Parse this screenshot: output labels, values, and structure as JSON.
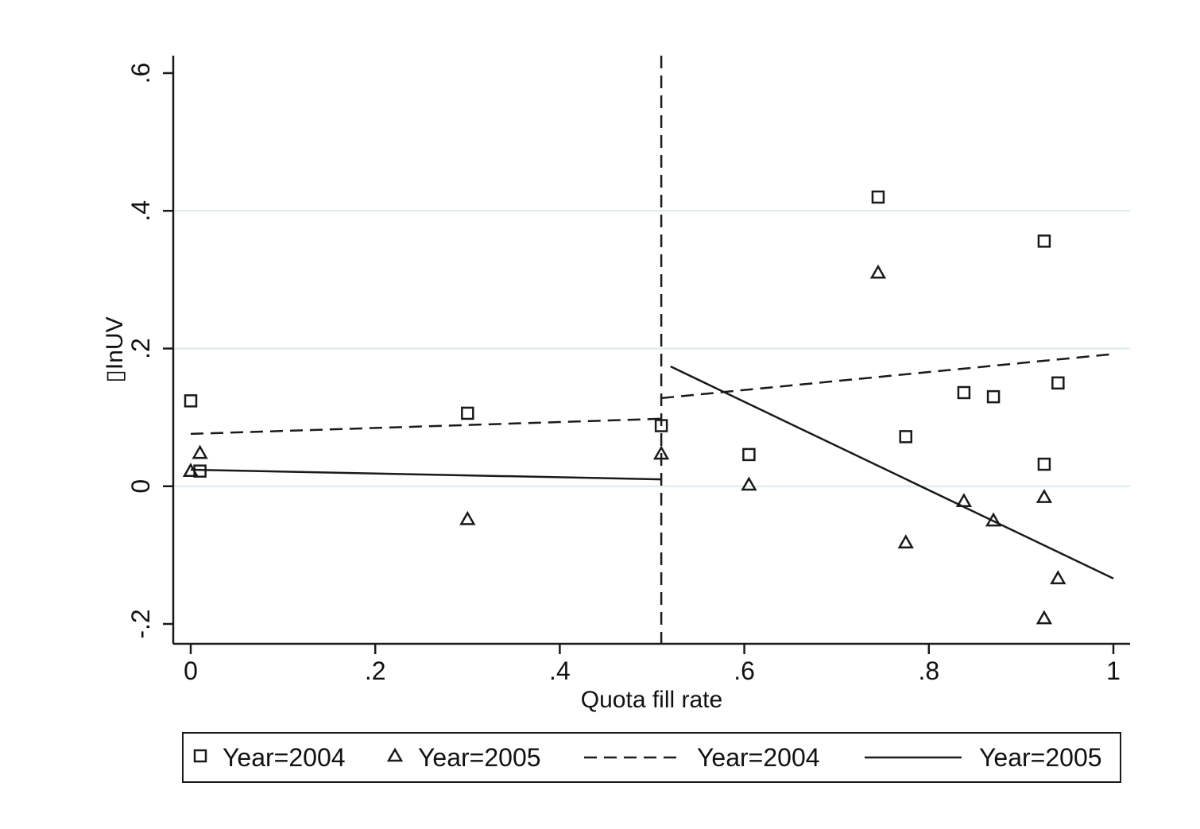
{
  "chart_data": {
    "type": "scatter",
    "xlabel": "Quota fill rate",
    "ylabel": "▯InUV",
    "xlim": [
      0,
      1
    ],
    "ylim": [
      -0.2,
      0.6
    ],
    "x_ticks": [
      0,
      0.2,
      0.4,
      0.6,
      0.8,
      1
    ],
    "x_tick_labels": [
      "0",
      ".2",
      ".4",
      ".6",
      ".8",
      "1"
    ],
    "y_ticks": [
      -0.2,
      0,
      0.2,
      0.4,
      0.6
    ],
    "y_tick_labels": [
      "-.2",
      "0",
      ".2",
      ".4",
      ".6"
    ],
    "grid": true,
    "threshold_x": 0.51,
    "series": [
      {
        "name": "Year=2004",
        "kind": "points",
        "marker": "square",
        "points": [
          {
            "x": 0.0,
            "y": 0.124
          },
          {
            "x": 0.01,
            "y": 0.022
          },
          {
            "x": 0.3,
            "y": 0.106
          },
          {
            "x": 0.51,
            "y": 0.088
          },
          {
            "x": 0.605,
            "y": 0.046
          },
          {
            "x": 0.745,
            "y": 0.42
          },
          {
            "x": 0.775,
            "y": 0.072
          },
          {
            "x": 0.838,
            "y": 0.136
          },
          {
            "x": 0.87,
            "y": 0.13
          },
          {
            "x": 0.925,
            "y": 0.356
          },
          {
            "x": 0.925,
            "y": 0.032
          },
          {
            "x": 0.94,
            "y": 0.15
          }
        ]
      },
      {
        "name": "Year=2005",
        "kind": "points",
        "marker": "triangle",
        "points": [
          {
            "x": 0.0,
            "y": 0.022
          },
          {
            "x": 0.01,
            "y": 0.048
          },
          {
            "x": 0.3,
            "y": -0.048
          },
          {
            "x": 0.51,
            "y": 0.047
          },
          {
            "x": 0.605,
            "y": 0.002
          },
          {
            "x": 0.745,
            "y": 0.31
          },
          {
            "x": 0.775,
            "y": -0.082
          },
          {
            "x": 0.838,
            "y": -0.022
          },
          {
            "x": 0.87,
            "y": -0.05
          },
          {
            "x": 0.925,
            "y": -0.016
          },
          {
            "x": 0.925,
            "y": -0.192
          },
          {
            "x": 0.94,
            "y": -0.134
          }
        ]
      },
      {
        "name": "Year=2004",
        "kind": "fit",
        "dash": "dashed",
        "segments": [
          [
            {
              "x": 0.0,
              "y": 0.076
            },
            {
              "x": 0.51,
              "y": 0.098
            }
          ],
          [
            {
              "x": 0.51,
              "y": 0.128
            },
            {
              "x": 1.0,
              "y": 0.192
            }
          ]
        ]
      },
      {
        "name": "Year=2005",
        "kind": "fit",
        "dash": "solid",
        "segments": [
          [
            {
              "x": 0.0,
              "y": 0.024
            },
            {
              "x": 0.51,
              "y": 0.01
            }
          ],
          [
            {
              "x": 0.52,
              "y": 0.174
            },
            {
              "x": 1.0,
              "y": -0.134
            }
          ]
        ]
      }
    ],
    "legend": {
      "placement": "bottom",
      "entries": [
        {
          "label": "Year=2004",
          "symbol": "square"
        },
        {
          "label": "Year=2005",
          "symbol": "triangle"
        },
        {
          "label": "Year=2004",
          "symbol": "dashed-line"
        },
        {
          "label": "Year=2005",
          "symbol": "solid-line"
        }
      ]
    },
    "colors": {
      "ink": "#1a1a1a",
      "grid": "#d9ecec"
    }
  }
}
